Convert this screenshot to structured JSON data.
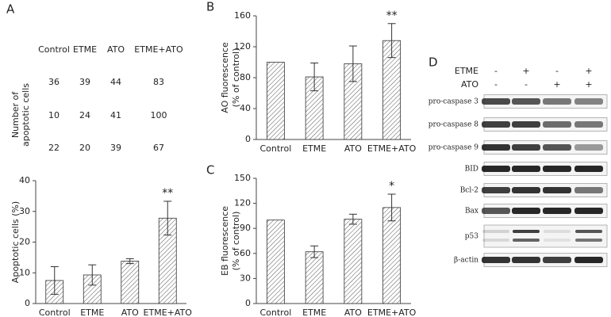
{
  "panel_labels": [
    "A",
    "B",
    "C",
    "D"
  ],
  "table": {
    "columns": [
      "Control",
      "ETME",
      "ATO",
      "ETME+ATO"
    ],
    "row_label": [
      "Number of",
      "apoptotic cells"
    ],
    "rows": [
      [
        36,
        39,
        44,
        83
      ],
      [
        10,
        24,
        41,
        100
      ],
      [
        22,
        20,
        39,
        67
      ]
    ]
  },
  "chart_data": [
    {
      "type": "bar",
      "ylabel": [
        "Apoptotic cells (%)"
      ],
      "categories": [
        "Control",
        "ETME",
        "ATO",
        "ETME+ATO"
      ],
      "values": [
        7.5,
        9.3,
        13.8,
        27.8
      ],
      "errors": [
        4.5,
        3.3,
        0.8,
        5.5
      ],
      "annotations": [
        null,
        null,
        null,
        "**"
      ],
      "ylim": [
        0,
        40
      ],
      "yticks": [
        0,
        10,
        20,
        30,
        40
      ],
      "color": "#333333"
    },
    {
      "type": "bar",
      "ylabel": [
        "AO fluorescence",
        "(% of control)"
      ],
      "categories": [
        "Control",
        "ETME",
        "ATO",
        "ETME+ATO"
      ],
      "values": [
        100,
        81,
        98,
        128
      ],
      "errors": [
        0,
        18,
        23,
        22
      ],
      "annotations": [
        null,
        null,
        null,
        "**"
      ],
      "ylim": [
        0,
        160
      ],
      "yticks": [
        0,
        40,
        80,
        120,
        160
      ],
      "color": "#333333"
    },
    {
      "type": "bar",
      "ylabel": [
        "EB fluorescence",
        "(% of control)"
      ],
      "categories": [
        "Control",
        "ETME",
        "ATO",
        "ETME+ATO"
      ],
      "values": [
        100,
        62,
        101,
        115
      ],
      "errors": [
        0,
        7,
        6,
        16
      ],
      "annotations": [
        null,
        null,
        null,
        "*"
      ],
      "ylim": [
        0,
        150
      ],
      "yticks": [
        0,
        30,
        60,
        90,
        120,
        150
      ],
      "color": "#333333"
    }
  ],
  "blot": {
    "conditions": [
      {
        "name": "ETME",
        "signs": [
          "-",
          "+",
          "-",
          "+"
        ]
      },
      {
        "name": "ATO",
        "signs": [
          "-",
          "-",
          "+",
          "+"
        ]
      }
    ],
    "proteins": [
      "pro-caspase 3",
      "pro-caspase 8",
      "pro-caspase 9",
      "BID",
      "Bcl-2",
      "Bax",
      "p53",
      "β-actin"
    ]
  }
}
